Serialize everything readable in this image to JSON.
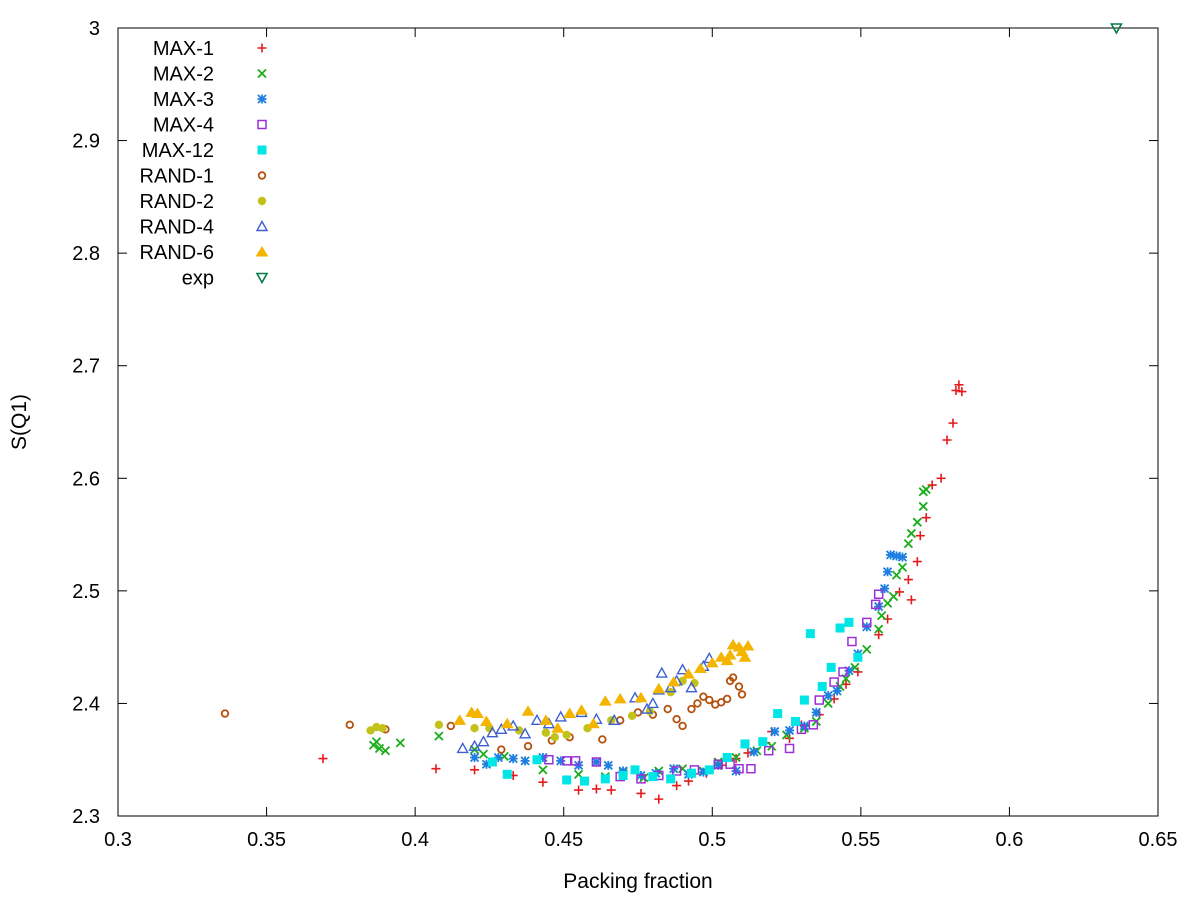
{
  "chart_data": {
    "type": "scatter",
    "title": "",
    "xlabel": "Packing fraction",
    "ylabel": "S(Q1)",
    "xlim": [
      0.3,
      0.65
    ],
    "ylim": [
      2.3,
      3.0
    ],
    "x_ticks": [
      "0.3",
      "0.35",
      "0.4",
      "0.45",
      "0.5",
      "0.55",
      "0.6",
      "0.65"
    ],
    "y_ticks": [
      "2.3",
      "2.4",
      "2.5",
      "2.6",
      "2.7",
      "2.8",
      "2.9",
      "3"
    ],
    "grid": false,
    "legend_position": "top-left",
    "series": [
      {
        "name": "MAX-1",
        "marker": "plus",
        "color": "#e41a1c",
        "points": [
          [
            0.369,
            2.351
          ],
          [
            0.407,
            2.342
          ],
          [
            0.42,
            2.341
          ],
          [
            0.433,
            2.336
          ],
          [
            0.443,
            2.33
          ],
          [
            0.455,
            2.323
          ],
          [
            0.461,
            2.324
          ],
          [
            0.466,
            2.323
          ],
          [
            0.476,
            2.32
          ],
          [
            0.482,
            2.315
          ],
          [
            0.488,
            2.327
          ],
          [
            0.492,
            2.331
          ],
          [
            0.498,
            2.338
          ],
          [
            0.503,
            2.345
          ],
          [
            0.508,
            2.351
          ],
          [
            0.512,
            2.356
          ],
          [
            0.518,
            2.365
          ],
          [
            0.52,
            2.375
          ],
          [
            0.526,
            2.369
          ],
          [
            0.53,
            2.381
          ],
          [
            0.536,
            2.39
          ],
          [
            0.541,
            2.404
          ],
          [
            0.545,
            2.417
          ],
          [
            0.549,
            2.428
          ],
          [
            0.556,
            2.461
          ],
          [
            0.559,
            2.475
          ],
          [
            0.563,
            2.499
          ],
          [
            0.566,
            2.51
          ],
          [
            0.567,
            2.492
          ],
          [
            0.569,
            2.526
          ],
          [
            0.57,
            2.549
          ],
          [
            0.572,
            2.565
          ],
          [
            0.574,
            2.594
          ],
          [
            0.577,
            2.6
          ],
          [
            0.579,
            2.634
          ],
          [
            0.581,
            2.649
          ],
          [
            0.582,
            2.678
          ],
          [
            0.583,
            2.683
          ],
          [
            0.584,
            2.677
          ]
        ]
      },
      {
        "name": "MAX-2",
        "marker": "x",
        "color": "#1aae1a",
        "points": [
          [
            0.386,
            2.363
          ],
          [
            0.388,
            2.36
          ],
          [
            0.387,
            2.366
          ],
          [
            0.39,
            2.358
          ],
          [
            0.395,
            2.365
          ],
          [
            0.408,
            2.371
          ],
          [
            0.42,
            2.359
          ],
          [
            0.423,
            2.355
          ],
          [
            0.43,
            2.353
          ],
          [
            0.443,
            2.341
          ],
          [
            0.455,
            2.337
          ],
          [
            0.464,
            2.335
          ],
          [
            0.47,
            2.339
          ],
          [
            0.477,
            2.334
          ],
          [
            0.482,
            2.34
          ],
          [
            0.49,
            2.342
          ],
          [
            0.497,
            2.34
          ],
          [
            0.502,
            2.348
          ],
          [
            0.508,
            2.352
          ],
          [
            0.515,
            2.358
          ],
          [
            0.52,
            2.362
          ],
          [
            0.525,
            2.372
          ],
          [
            0.531,
            2.378
          ],
          [
            0.535,
            2.384
          ],
          [
            0.539,
            2.4
          ],
          [
            0.543,
            2.415
          ],
          [
            0.545,
            2.422
          ],
          [
            0.548,
            2.432
          ],
          [
            0.552,
            2.448
          ],
          [
            0.556,
            2.466
          ],
          [
            0.557,
            2.478
          ],
          [
            0.559,
            2.489
          ],
          [
            0.561,
            2.495
          ],
          [
            0.562,
            2.514
          ],
          [
            0.564,
            2.521
          ],
          [
            0.566,
            2.542
          ],
          [
            0.567,
            2.551
          ],
          [
            0.569,
            2.561
          ],
          [
            0.571,
            2.575
          ],
          [
            0.571,
            2.588
          ],
          [
            0.572,
            2.59
          ]
        ]
      },
      {
        "name": "MAX-3",
        "marker": "star",
        "color": "#1e7fe0",
        "points": [
          [
            0.42,
            2.352
          ],
          [
            0.424,
            2.346
          ],
          [
            0.428,
            2.352
          ],
          [
            0.433,
            2.351
          ],
          [
            0.437,
            2.349
          ],
          [
            0.443,
            2.352
          ],
          [
            0.449,
            2.349
          ],
          [
            0.455,
            2.345
          ],
          [
            0.461,
            2.348
          ],
          [
            0.465,
            2.345
          ],
          [
            0.47,
            2.34
          ],
          [
            0.476,
            2.336
          ],
          [
            0.481,
            2.338
          ],
          [
            0.487,
            2.342
          ],
          [
            0.492,
            2.337
          ],
          [
            0.497,
            2.339
          ],
          [
            0.502,
            2.345
          ],
          [
            0.508,
            2.34
          ],
          [
            0.514,
            2.357
          ],
          [
            0.521,
            2.375
          ],
          [
            0.526,
            2.376
          ],
          [
            0.531,
            2.38
          ],
          [
            0.535,
            2.392
          ],
          [
            0.539,
            2.407
          ],
          [
            0.542,
            2.411
          ],
          [
            0.546,
            2.429
          ],
          [
            0.549,
            2.444
          ],
          [
            0.552,
            2.468
          ],
          [
            0.556,
            2.486
          ],
          [
            0.558,
            2.502
          ],
          [
            0.559,
            2.517
          ],
          [
            0.56,
            2.532
          ],
          [
            0.562,
            2.531
          ],
          [
            0.564,
            2.53
          ]
        ]
      },
      {
        "name": "MAX-4",
        "marker": "square-open",
        "color": "#9b30d9",
        "points": [
          [
            0.445,
            2.35
          ],
          [
            0.451,
            2.349
          ],
          [
            0.454,
            2.349
          ],
          [
            0.461,
            2.348
          ],
          [
            0.469,
            2.335
          ],
          [
            0.476,
            2.333
          ],
          [
            0.482,
            2.336
          ],
          [
            0.488,
            2.34
          ],
          [
            0.494,
            2.341
          ],
          [
            0.502,
            2.346
          ],
          [
            0.506,
            2.346
          ],
          [
            0.509,
            2.342
          ],
          [
            0.513,
            2.342
          ],
          [
            0.519,
            2.358
          ],
          [
            0.526,
            2.36
          ],
          [
            0.53,
            2.377
          ],
          [
            0.534,
            2.381
          ],
          [
            0.536,
            2.403
          ],
          [
            0.541,
            2.419
          ],
          [
            0.544,
            2.428
          ],
          [
            0.547,
            2.455
          ],
          [
            0.552,
            2.472
          ],
          [
            0.555,
            2.488
          ],
          [
            0.556,
            2.497
          ]
        ]
      },
      {
        "name": "MAX-12",
        "marker": "square-filled",
        "color": "#00e5e5",
        "points": [
          [
            0.426,
            2.348
          ],
          [
            0.431,
            2.337
          ],
          [
            0.441,
            2.35
          ],
          [
            0.451,
            2.332
          ],
          [
            0.457,
            2.331
          ],
          [
            0.464,
            2.333
          ],
          [
            0.47,
            2.336
          ],
          [
            0.474,
            2.341
          ],
          [
            0.48,
            2.335
          ],
          [
            0.486,
            2.333
          ],
          [
            0.493,
            2.338
          ],
          [
            0.499,
            2.341
          ],
          [
            0.505,
            2.352
          ],
          [
            0.511,
            2.364
          ],
          [
            0.517,
            2.366
          ],
          [
            0.522,
            2.391
          ],
          [
            0.528,
            2.384
          ],
          [
            0.531,
            2.403
          ],
          [
            0.533,
            2.462
          ],
          [
            0.537,
            2.415
          ],
          [
            0.54,
            2.432
          ],
          [
            0.543,
            2.467
          ],
          [
            0.546,
            2.472
          ],
          [
            0.549,
            2.441
          ]
        ]
      },
      {
        "name": "RAND-1",
        "marker": "circle-open",
        "color": "#b5500c",
        "points": [
          [
            0.336,
            2.391
          ],
          [
            0.378,
            2.381
          ],
          [
            0.39,
            2.377
          ],
          [
            0.412,
            2.38
          ],
          [
            0.429,
            2.359
          ],
          [
            0.438,
            2.362
          ],
          [
            0.446,
            2.367
          ],
          [
            0.452,
            2.37
          ],
          [
            0.463,
            2.368
          ],
          [
            0.469,
            2.385
          ],
          [
            0.475,
            2.392
          ],
          [
            0.48,
            2.39
          ],
          [
            0.485,
            2.395
          ],
          [
            0.488,
            2.386
          ],
          [
            0.49,
            2.38
          ],
          [
            0.493,
            2.395
          ],
          [
            0.495,
            2.4
          ],
          [
            0.497,
            2.406
          ],
          [
            0.499,
            2.403
          ],
          [
            0.501,
            2.399
          ],
          [
            0.503,
            2.401
          ],
          [
            0.505,
            2.404
          ],
          [
            0.506,
            2.42
          ],
          [
            0.507,
            2.423
          ],
          [
            0.509,
            2.415
          ],
          [
            0.51,
            2.408
          ]
        ]
      },
      {
        "name": "RAND-2",
        "marker": "circle-filled",
        "color": "#c2c21a",
        "points": [
          [
            0.385,
            2.376
          ],
          [
            0.387,
            2.379
          ],
          [
            0.389,
            2.378
          ],
          [
            0.408,
            2.381
          ],
          [
            0.42,
            2.378
          ],
          [
            0.425,
            2.378
          ],
          [
            0.435,
            2.376
          ],
          [
            0.444,
            2.374
          ],
          [
            0.447,
            2.37
          ],
          [
            0.451,
            2.372
          ],
          [
            0.458,
            2.378
          ],
          [
            0.466,
            2.385
          ],
          [
            0.473,
            2.389
          ],
          [
            0.479,
            2.393
          ],
          [
            0.486,
            2.41
          ],
          [
            0.49,
            2.42
          ],
          [
            0.494,
            2.418
          ]
        ]
      },
      {
        "name": "RAND-4",
        "marker": "triangle-open",
        "color": "#3d5fd1",
        "points": [
          [
            0.416,
            2.36
          ],
          [
            0.42,
            2.362
          ],
          [
            0.423,
            2.366
          ],
          [
            0.426,
            2.374
          ],
          [
            0.429,
            2.377
          ],
          [
            0.433,
            2.38
          ],
          [
            0.437,
            2.373
          ],
          [
            0.441,
            2.385
          ],
          [
            0.445,
            2.382
          ],
          [
            0.449,
            2.388
          ],
          [
            0.456,
            2.392
          ],
          [
            0.461,
            2.386
          ],
          [
            0.467,
            2.385
          ],
          [
            0.474,
            2.405
          ],
          [
            0.478,
            2.395
          ],
          [
            0.48,
            2.4
          ],
          [
            0.482,
            2.412
          ],
          [
            0.483,
            2.427
          ],
          [
            0.486,
            2.414
          ],
          [
            0.488,
            2.42
          ],
          [
            0.49,
            2.43
          ],
          [
            0.493,
            2.414
          ],
          [
            0.497,
            2.433
          ],
          [
            0.499,
            2.44
          ]
        ]
      },
      {
        "name": "RAND-6",
        "marker": "triangle-filled",
        "color": "#f5b400",
        "points": [
          [
            0.415,
            2.385
          ],
          [
            0.419,
            2.392
          ],
          [
            0.421,
            2.391
          ],
          [
            0.424,
            2.384
          ],
          [
            0.431,
            2.382
          ],
          [
            0.438,
            2.393
          ],
          [
            0.444,
            2.385
          ],
          [
            0.448,
            2.378
          ],
          [
            0.452,
            2.391
          ],
          [
            0.456,
            2.394
          ],
          [
            0.46,
            2.382
          ],
          [
            0.464,
            2.402
          ],
          [
            0.469,
            2.404
          ],
          [
            0.476,
            2.405
          ],
          [
            0.482,
            2.413
          ],
          [
            0.487,
            2.419
          ],
          [
            0.492,
            2.426
          ],
          [
            0.496,
            2.431
          ],
          [
            0.5,
            2.436
          ],
          [
            0.503,
            2.441
          ],
          [
            0.505,
            2.438
          ],
          [
            0.506,
            2.443
          ],
          [
            0.507,
            2.452
          ],
          [
            0.509,
            2.45
          ],
          [
            0.51,
            2.446
          ],
          [
            0.511,
            2.441
          ],
          [
            0.512,
            2.451
          ]
        ]
      },
      {
        "name": "exp",
        "marker": "triangle-down-open",
        "color": "#0a7a4a",
        "points": [
          [
            0.636,
            3.0
          ]
        ]
      }
    ]
  }
}
